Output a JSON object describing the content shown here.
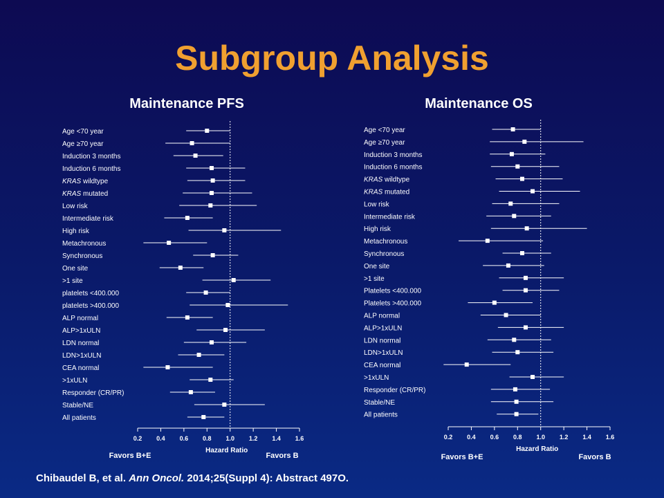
{
  "slide": {
    "title": "Subgroup Analysis",
    "citation": {
      "authors": "Chibaudel B, et al.",
      "journal": "Ann Oncol.",
      "details": "2014;25(Suppl 4): Abstract 497O."
    }
  },
  "colors": {
    "title": "#f0a030",
    "text": "#ffffff",
    "background_top": "#0d0a52",
    "background_bottom": "#0a2a85"
  },
  "chart_data": [
    {
      "type": "forest",
      "title": "Maintenance PFS",
      "xlabel": "Hazard Ratio",
      "xlim": [
        0.2,
        1.6
      ],
      "xticks": [
        "0.2",
        "0.4",
        "0.6",
        "0.8",
        "1.0",
        "1.2",
        "1.4",
        "1.6"
      ],
      "reference_line": 1.0,
      "favors_left": "Favors B+E",
      "favors_right": "Favors B",
      "rows": [
        {
          "label": "Age <70 year",
          "hr": 0.8,
          "lo": 0.62,
          "hi": 1.0
        },
        {
          "label": "Age ≥70 year",
          "hr": 0.67,
          "lo": 0.44,
          "hi": 1.0
        },
        {
          "label": "Induction 3 months",
          "hr": 0.7,
          "lo": 0.51,
          "hi": 0.94
        },
        {
          "label": "Induction 6 months",
          "hr": 0.84,
          "lo": 0.62,
          "hi": 1.13
        },
        {
          "label": "KRAS wildtype",
          "italic_prefix": "KRAS",
          "suffix": " wildtype",
          "hr": 0.85,
          "lo": 0.63,
          "hi": 1.13
        },
        {
          "label": "KRAS mutated",
          "italic_prefix": "KRAS",
          "suffix": " mutated",
          "hr": 0.84,
          "lo": 0.59,
          "hi": 1.19
        },
        {
          "label": "Low risk",
          "hr": 0.83,
          "lo": 0.56,
          "hi": 1.23
        },
        {
          "label": "Intermediate risk",
          "hr": 0.63,
          "lo": 0.43,
          "hi": 0.85
        },
        {
          "label": "High risk",
          "hr": 0.95,
          "lo": 0.64,
          "hi": 1.44
        },
        {
          "label": "Metachronous",
          "hr": 0.47,
          "lo": 0.25,
          "hi": 0.8
        },
        {
          "label": "Synchronous",
          "hr": 0.85,
          "lo": 0.68,
          "hi": 1.07
        },
        {
          "label": "One site",
          "hr": 0.57,
          "lo": 0.39,
          "hi": 0.77
        },
        {
          "label": ">1 site",
          "hr": 1.03,
          "lo": 0.76,
          "hi": 1.35
        },
        {
          "label": "platelets <400.000",
          "hr": 0.79,
          "lo": 0.62,
          "hi": 1.0
        },
        {
          "label": "platelets >400.000",
          "hr": 0.98,
          "lo": 0.65,
          "hi": 1.5
        },
        {
          "label": "ALP normal",
          "hr": 0.63,
          "lo": 0.45,
          "hi": 0.85
        },
        {
          "label": "ALP>1xULN",
          "hr": 0.96,
          "lo": 0.71,
          "hi": 1.3
        },
        {
          "label": "LDN normal",
          "hr": 0.84,
          "lo": 0.6,
          "hi": 1.14
        },
        {
          "label": "LDN>1xULN",
          "hr": 0.73,
          "lo": 0.55,
          "hi": 0.95
        },
        {
          "label": "CEA normal",
          "hr": 0.46,
          "lo": 0.25,
          "hi": 0.85
        },
        {
          "label": ">1xULN",
          "hr": 0.83,
          "lo": 0.65,
          "hi": 1.03
        },
        {
          "label": "Responder (CR/PR)",
          "hr": 0.66,
          "lo": 0.48,
          "hi": 0.87
        },
        {
          "label": "Stable/NE",
          "hr": 0.95,
          "lo": 0.69,
          "hi": 1.3
        },
        {
          "label": "All patients",
          "hr": 0.77,
          "lo": 0.63,
          "hi": 0.95
        }
      ]
    },
    {
      "type": "forest",
      "title": "Maintenance OS",
      "xlabel": "Hazard Ratio",
      "xlim": [
        0.2,
        1.6
      ],
      "xticks": [
        "0.2",
        "0.4",
        "0.6",
        "0.8",
        "1.0",
        "1.2",
        "1.4",
        "1.6"
      ],
      "reference_line": 1.0,
      "favors_left": "Favors  B+E",
      "favors_right": "Favors  B",
      "rows": [
        {
          "label": "Age <70 year",
          "hr": 0.76,
          "lo": 0.58,
          "hi": 1.0
        },
        {
          "label": "Age ≥70 year",
          "hr": 0.86,
          "lo": 0.56,
          "hi": 1.37
        },
        {
          "label": "Induction 3 months",
          "hr": 0.75,
          "lo": 0.56,
          "hi": 1.04
        },
        {
          "label": "Induction 6 months",
          "hr": 0.8,
          "lo": 0.57,
          "hi": 1.16
        },
        {
          "label": "KRAS wildtype",
          "italic_prefix": "KRAS",
          "suffix": " wildtype",
          "hr": 0.84,
          "lo": 0.61,
          "hi": 1.19
        },
        {
          "label": "KRAS mutated",
          "italic_prefix": "KRAS",
          "suffix": " mutated",
          "hr": 0.93,
          "lo": 0.64,
          "hi": 1.34
        },
        {
          "label": "Low risk",
          "hr": 0.74,
          "lo": 0.58,
          "hi": 1.16
        },
        {
          "label": "Intermediate risk",
          "hr": 0.77,
          "lo": 0.53,
          "hi": 1.09
        },
        {
          "label": "High risk",
          "hr": 0.88,
          "lo": 0.57,
          "hi": 1.4
        },
        {
          "label": "Metachronous",
          "hr": 0.54,
          "lo": 0.29,
          "hi": 1.02
        },
        {
          "label": "Synchronous",
          "hr": 0.84,
          "lo": 0.67,
          "hi": 1.09
        },
        {
          "label": "One site",
          "hr": 0.72,
          "lo": 0.5,
          "hi": 1.03
        },
        {
          "label": ">1 site",
          "hr": 0.87,
          "lo": 0.64,
          "hi": 1.2
        },
        {
          "label": "Platelets <400.000",
          "hr": 0.87,
          "lo": 0.67,
          "hi": 1.16
        },
        {
          "label": "Platelets >400.000",
          "hr": 0.6,
          "lo": 0.37,
          "hi": 0.93
        },
        {
          "label": "ALP normal",
          "hr": 0.7,
          "lo": 0.48,
          "hi": 1.0
        },
        {
          "label": "ALP>1xULN",
          "hr": 0.87,
          "lo": 0.63,
          "hi": 1.2
        },
        {
          "label": "LDN normal",
          "hr": 0.77,
          "lo": 0.54,
          "hi": 1.09
        },
        {
          "label": "LDN>1xULN",
          "hr": 0.8,
          "lo": 0.58,
          "hi": 1.11
        },
        {
          "label": "CEA normal",
          "hr": 0.36,
          "lo": 0.16,
          "hi": 0.74
        },
        {
          "label": ">1xULN",
          "hr": 0.93,
          "lo": 0.73,
          "hi": 1.2
        },
        {
          "label": "Responder (CR/PR)",
          "hr": 0.78,
          "lo": 0.57,
          "hi": 1.08
        },
        {
          "label": "Stable/NE",
          "hr": 0.79,
          "lo": 0.57,
          "hi": 1.11
        },
        {
          "label": "All patients",
          "hr": 0.79,
          "lo": 0.62,
          "hi": 0.98
        }
      ]
    }
  ]
}
